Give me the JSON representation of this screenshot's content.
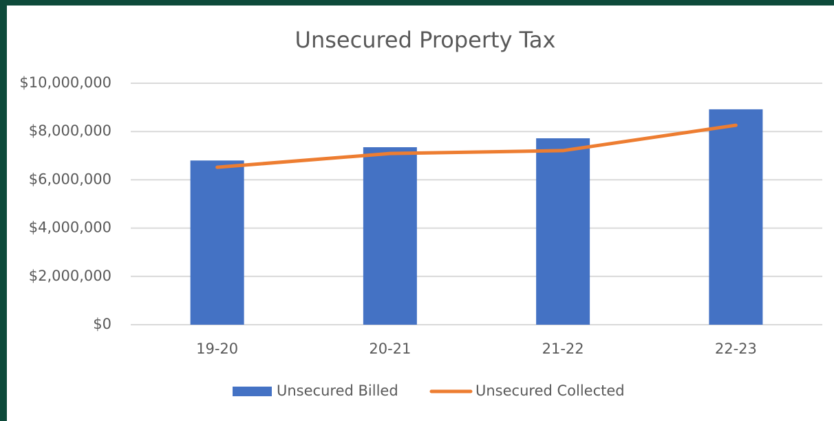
{
  "chart_data": {
    "type": "bar",
    "title": "Unsecured Property Tax",
    "categories": [
      "19-20",
      "20-21",
      "21-22",
      "22-23"
    ],
    "series": [
      {
        "name": "Unsecured Billed",
        "type": "bar",
        "color": "#4472c4",
        "values": [
          6800000,
          7350000,
          7720000,
          8920000
        ]
      },
      {
        "name": "Unsecured Collected",
        "type": "line",
        "color": "#ed7d31",
        "values": [
          6520000,
          7090000,
          7210000,
          8260000
        ]
      }
    ],
    "ylim": [
      0,
      10000000
    ],
    "yticks": [
      {
        "value": 0,
        "label": "$0"
      },
      {
        "value": 2000000,
        "label": "$2,000,000"
      },
      {
        "value": 4000000,
        "label": "$4,000,000"
      },
      {
        "value": 6000000,
        "label": "$6,000,000"
      },
      {
        "value": 8000000,
        "label": "$8,000,000"
      },
      {
        "value": 10000000,
        "label": "$10,000,000"
      }
    ],
    "grid": true,
    "legend": "bottom"
  }
}
